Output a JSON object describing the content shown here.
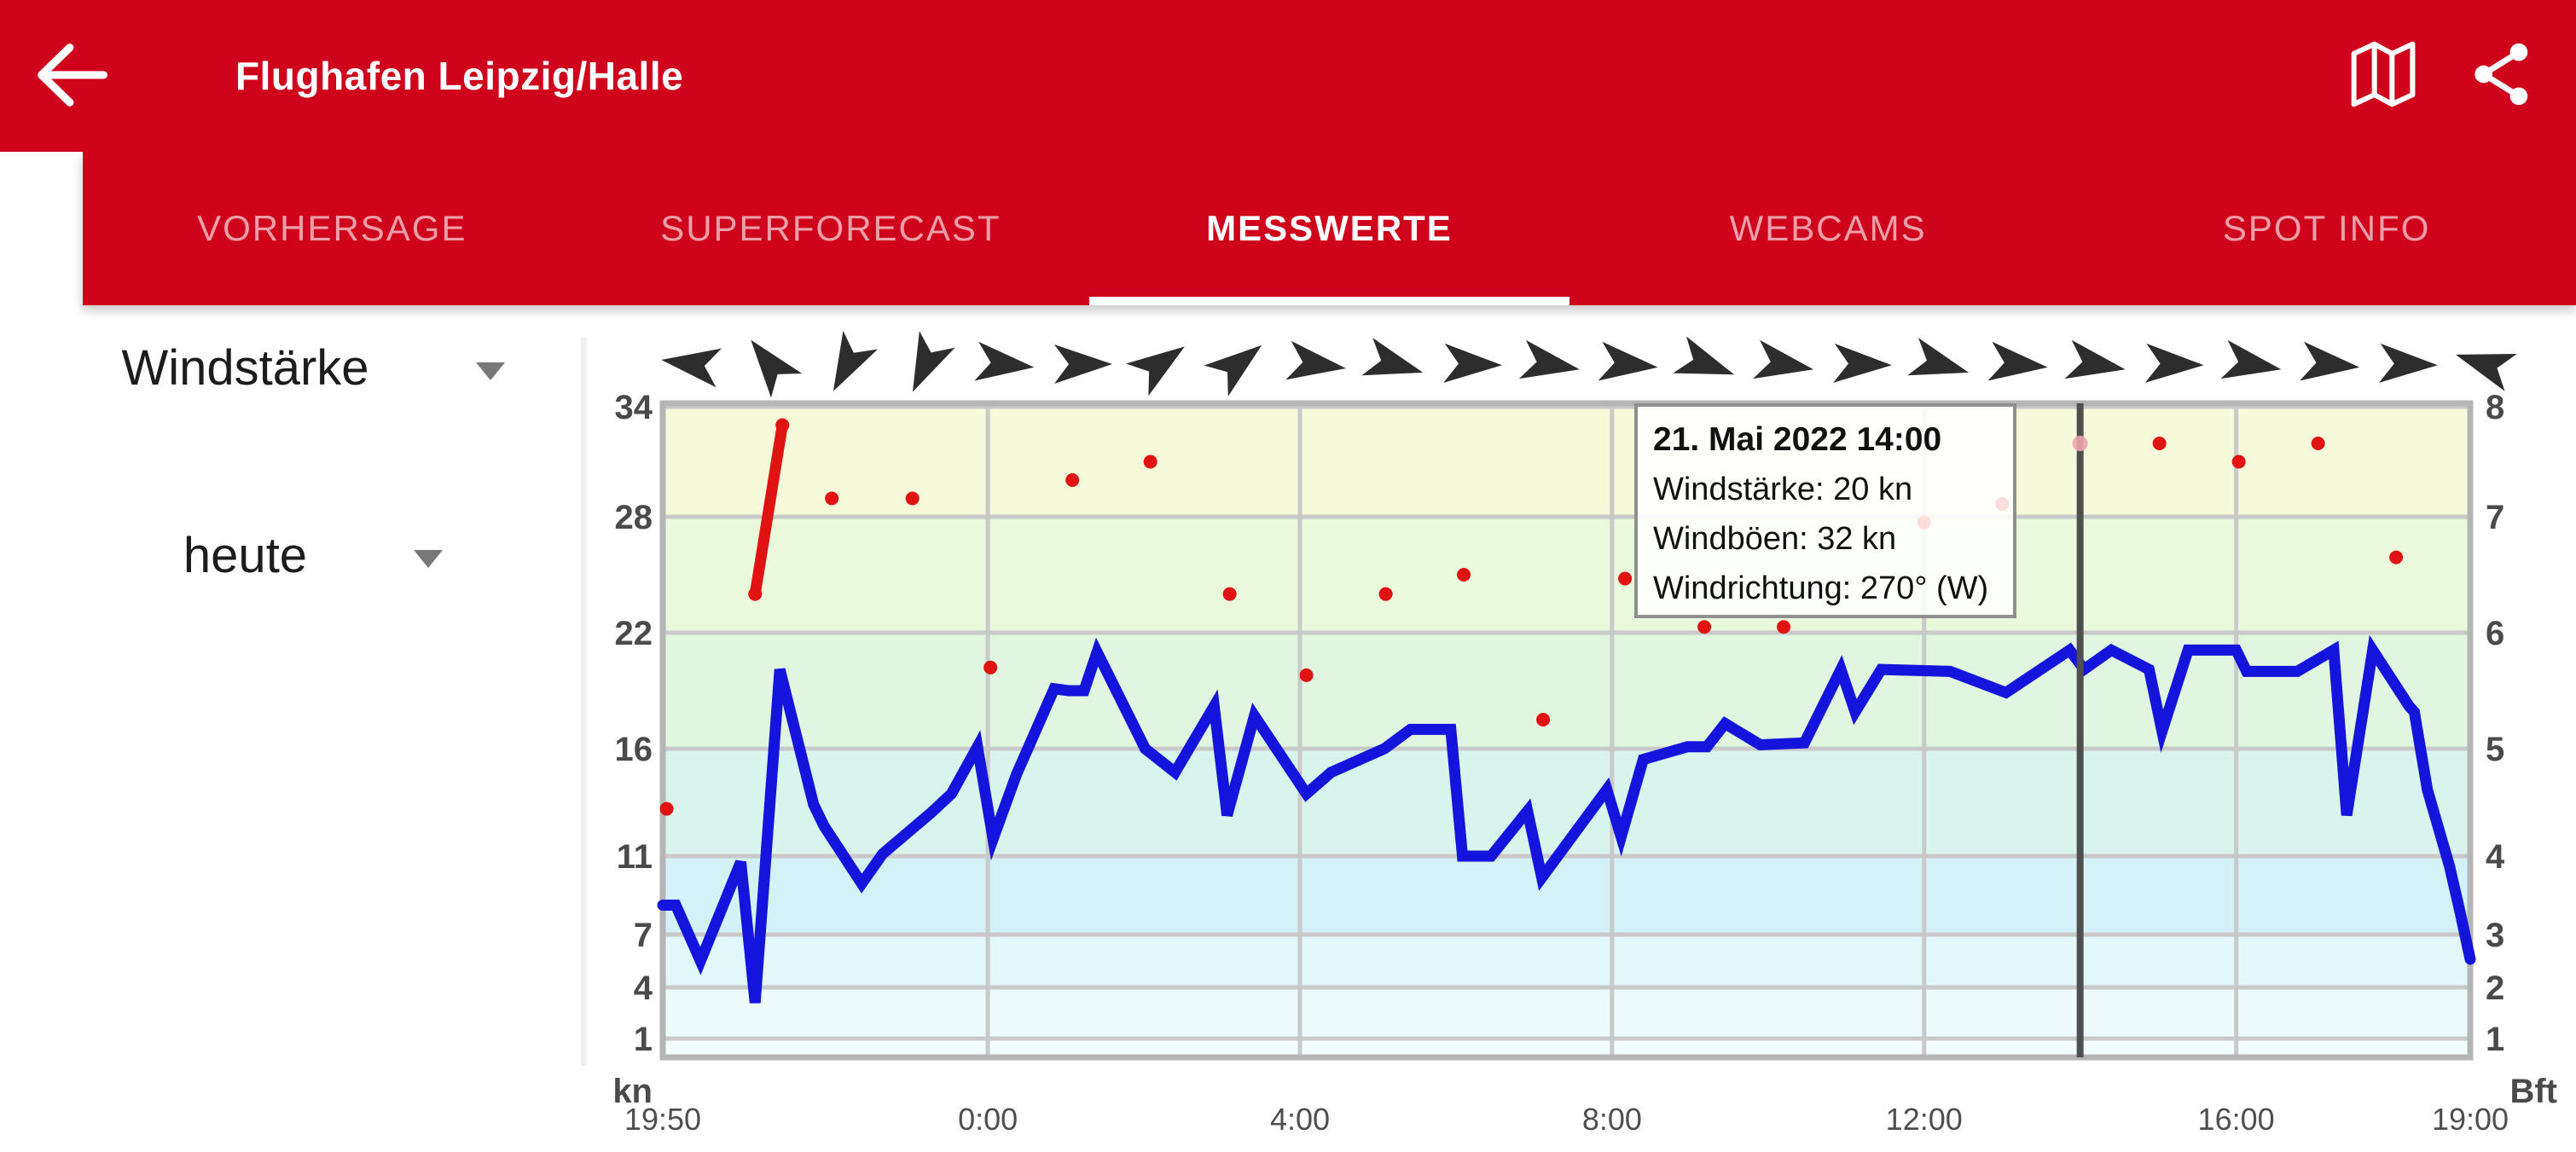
{
  "header": {
    "title": "Flughafen Leipzig/Halle",
    "background_color": "#d0031d",
    "icons": [
      "back-arrow",
      "map",
      "share"
    ]
  },
  "tabs": {
    "items": [
      {
        "label": "VORHERSAGE",
        "active": false
      },
      {
        "label": "SUPERFORECAST",
        "active": false
      },
      {
        "label": "MESSWERTE",
        "active": true
      },
      {
        "label": "WEBCAMS",
        "active": false
      },
      {
        "label": "SPOT INFO",
        "active": false
      }
    ],
    "active_underline_color": "#ffffff"
  },
  "controls": {
    "parameter_dropdown": {
      "value": "Windstärke"
    },
    "period_dropdown": {
      "value": "heute"
    }
  },
  "tooltip": {
    "title": "21. Mai 2022 14:00",
    "lines": [
      "Windstärke: 20 kn",
      "Windböen: 32 kn",
      "Windrichtung: 270° (W)"
    ]
  },
  "chart_data": {
    "type": "line",
    "title": "",
    "xlabel": "",
    "ylabel_left": "kn",
    "ylabel_right": "Bft",
    "grid": true,
    "legend": "none",
    "x_axis": {
      "labels": [
        "19:50",
        "0:00",
        "4:00",
        "8:00",
        "12:00",
        "16:00",
        "19:00"
      ],
      "label_minutes": [
        0,
        250,
        490,
        730,
        970,
        1210,
        1390
      ],
      "total_minutes": 1390
    },
    "y_axis_left": {
      "unit": "kn",
      "ticks": [
        34,
        28,
        22,
        16,
        11,
        7,
        4,
        1
      ]
    },
    "y_axis_right": {
      "unit": "Bft",
      "ticks": [
        8,
        7,
        6,
        5,
        4,
        3,
        2,
        1
      ]
    },
    "bands": [
      {
        "from_kn": 28,
        "to_kn": 34,
        "color": "#f6fadb"
      },
      {
        "from_kn": 22,
        "to_kn": 28,
        "color": "#eaf8dc"
      },
      {
        "from_kn": 16,
        "to_kn": 22,
        "color": "#e1f6e1"
      },
      {
        "from_kn": 11,
        "to_kn": 16,
        "color": "#d9f4ec"
      },
      {
        "from_kn": 7,
        "to_kn": 11,
        "color": "#d3f1f7"
      },
      {
        "from_kn": 4,
        "to_kn": 7,
        "color": "#e1f7fa"
      },
      {
        "from_kn": 1,
        "to_kn": 4,
        "color": "#edfbfd"
      },
      {
        "from_kn": 0,
        "to_kn": 1,
        "color": "#f4fdfe"
      }
    ],
    "gridline_color": "#c9c9c9",
    "border_color": "#b5b5b5",
    "wind_speed": {
      "name": "Windstärke",
      "color": "#1414dd",
      "series_min_kn": [
        [
          0,
          8.5
        ],
        [
          10,
          8.5
        ],
        [
          29,
          5.5
        ],
        [
          60,
          10.7
        ],
        [
          71,
          3.1
        ],
        [
          90,
          20.1
        ],
        [
          116,
          13.4
        ],
        [
          124,
          12.4
        ],
        [
          153,
          9.6
        ],
        [
          169,
          11.1
        ],
        [
          206,
          13.0
        ],
        [
          222,
          13.9
        ],
        [
          242,
          16.1
        ],
        [
          254,
          11.8
        ],
        [
          272,
          14.8
        ],
        [
          301,
          19.1
        ],
        [
          312,
          19.0
        ],
        [
          324,
          19.0
        ],
        [
          334,
          21.0
        ],
        [
          371,
          16.0
        ],
        [
          394,
          14.9
        ],
        [
          424,
          18.2
        ],
        [
          434,
          12.9
        ],
        [
          455,
          17.7
        ],
        [
          495,
          13.9
        ],
        [
          514,
          14.9
        ],
        [
          555,
          16.0
        ],
        [
          575,
          17.0
        ],
        [
          606,
          17.0
        ],
        [
          615,
          11.0
        ],
        [
          637,
          11.0
        ],
        [
          665,
          13.1
        ],
        [
          676,
          9.9
        ],
        [
          726,
          14.1
        ],
        [
          737,
          11.9
        ],
        [
          754,
          15.5
        ],
        [
          788,
          16.1
        ],
        [
          803,
          16.1
        ],
        [
          817,
          17.3
        ],
        [
          844,
          16.2
        ],
        [
          878,
          16.3
        ],
        [
          906,
          20.1
        ],
        [
          917,
          17.9
        ],
        [
          937,
          20.1
        ],
        [
          990,
          20.0
        ],
        [
          1033,
          18.9
        ],
        [
          1082,
          21.1
        ],
        [
          1093,
          20.1
        ],
        [
          1114,
          21.1
        ],
        [
          1143,
          20.1
        ],
        [
          1153,
          16.9
        ],
        [
          1173,
          21.1
        ],
        [
          1210,
          21.1
        ],
        [
          1218,
          20.0
        ],
        [
          1257,
          20.0
        ],
        [
          1285,
          21.1
        ],
        [
          1295,
          12.9
        ],
        [
          1315,
          21.1
        ],
        [
          1343,
          18.2
        ],
        [
          1347,
          17.9
        ],
        [
          1357,
          14.1
        ],
        [
          1374,
          10.5
        ],
        [
          1382,
          8.2
        ],
        [
          1390,
          5.6
        ]
      ]
    },
    "gusts": {
      "name": "Windböen",
      "color": "#e01212",
      "points_min_kn": [
        [
          3,
          13.2
        ],
        [
          71,
          24
        ],
        [
          92,
          33
        ],
        [
          130,
          29
        ],
        [
          192,
          29
        ],
        [
          252,
          20.2
        ],
        [
          315,
          30
        ],
        [
          375,
          31
        ],
        [
          436,
          24
        ],
        [
          495,
          19.8
        ],
        [
          556,
          24
        ],
        [
          616,
          25
        ],
        [
          677,
          17.5
        ],
        [
          740,
          24.8
        ],
        [
          801,
          22.3
        ],
        [
          862,
          22.3
        ],
        [
          970,
          27.7
        ],
        [
          1030,
          28.7
        ],
        [
          1151,
          32
        ],
        [
          1212,
          31
        ],
        [
          1273,
          32
        ],
        [
          1333,
          25.9
        ]
      ],
      "connected_segment_min_kn": [
        [
          71,
          24
        ],
        [
          92,
          33
        ]
      ],
      "highlighted_point": {
        "minute": 1090,
        "kn": 32,
        "color": "#f0a4ac"
      }
    },
    "wind_direction": {
      "arrow_color": "#2d2d2d",
      "rotations_deg": [
        188,
        232,
        118,
        115,
        6,
        0,
        325,
        322,
        8,
        16,
        2,
        10,
        6,
        20,
        10,
        2,
        16,
        6,
        10,
        2,
        10,
        6,
        2,
        198
      ]
    },
    "cursor": {
      "minute": 1090,
      "color": "#4f4f4f"
    }
  }
}
